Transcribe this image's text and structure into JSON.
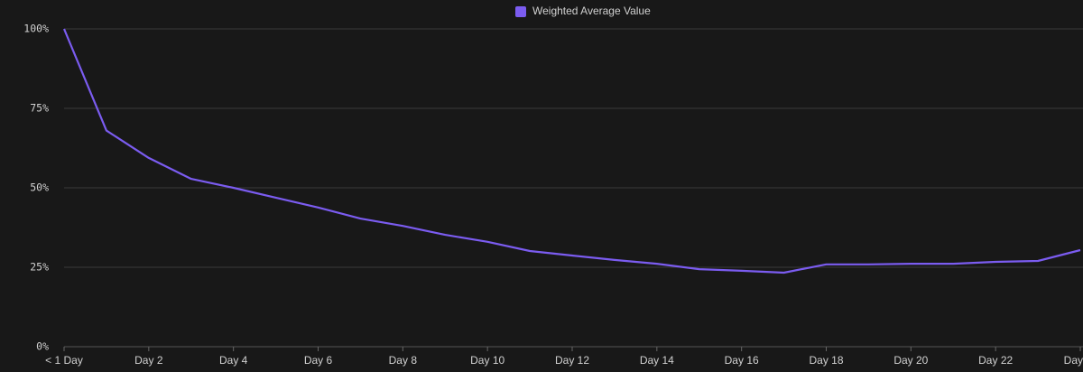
{
  "chart_data": {
    "type": "line",
    "categories": [
      "< 1 Day",
      null,
      "Day 2",
      null,
      "Day 4",
      null,
      "Day 6",
      null,
      "Day 8",
      null,
      "Day 10",
      null,
      "Day 12",
      null,
      "Day 14",
      null,
      "Day 16",
      null,
      "Day 18",
      null,
      "Day 20",
      null,
      "Day 22",
      null,
      "Day"
    ],
    "series": [
      {
        "name": "Weighted Average Value",
        "color": "#7b5cf0",
        "values": [
          100,
          68,
          59.4,
          52.8,
          50,
          46.9,
          43.8,
          40.3,
          38,
          35.2,
          33,
          30.1,
          28.7,
          27.3,
          26.1,
          24.4,
          23.9,
          23.3,
          25.9,
          25.9,
          26.1,
          26.1,
          26.7,
          27,
          30.4
        ]
      }
    ],
    "ylim": [
      0,
      100
    ],
    "yticks": [
      {
        "value": 0,
        "label": "0%"
      },
      {
        "value": 25,
        "label": "25%"
      },
      {
        "value": 50,
        "label": "50%"
      },
      {
        "value": 75,
        "label": "75%"
      },
      {
        "value": 100,
        "label": "100%"
      }
    ],
    "grid": true,
    "legend": "top"
  }
}
